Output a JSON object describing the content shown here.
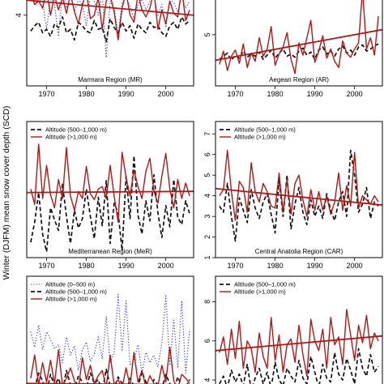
{
  "figure": {
    "ylabel": "Winter (DJFM) mean snow cover depth (SCD)"
  },
  "colors": {
    "low": "#2233cc",
    "mid": "#111111",
    "high": "#b01818"
  },
  "chart_data": [
    {
      "type": "line",
      "region": "Marmara Region (MR)",
      "xticks": [
        1970,
        1980,
        1990,
        2000
      ],
      "yticks": [
        4
      ],
      "xlim": [
        1965,
        2007
      ],
      "ylim": [
        0,
        5.5
      ],
      "legend": [],
      "years": [
        1966,
        1967,
        1968,
        1969,
        1970,
        1971,
        1972,
        1973,
        1974,
        1975,
        1976,
        1977,
        1978,
        1979,
        1980,
        1981,
        1982,
        1983,
        1984,
        1985,
        1986,
        1987,
        1988,
        1989,
        1990,
        1991,
        1992,
        1993,
        1994,
        1995,
        1996,
        1997,
        1998,
        1999,
        2000,
        2001,
        2002,
        2003,
        2004,
        2005,
        2006
      ],
      "series": [
        {
          "class": "low",
          "style": "dotted",
          "values": [
            5.2,
            4.6,
            4.9,
            4.8,
            3.2,
            5.0,
            4.6,
            2.8,
            5.3,
            4.4,
            5.1,
            4.2,
            4.9,
            4.6,
            3.4,
            5.2,
            4.8,
            4.0,
            5.3,
            1.6,
            4.8,
            4.4,
            2.9,
            4.7,
            5.0,
            4.5,
            3.8,
            4.6,
            4.9,
            4.3,
            4.8,
            5.1,
            4.0,
            4.6,
            3.3,
            4.9,
            4.7,
            4.2,
            5.0,
            4.4,
            4.8
          ]
        },
        {
          "class": "mid",
          "style": "dashed",
          "values": [
            3.1,
            3.4,
            3.6,
            3.0,
            3.2,
            2.8,
            3.5,
            3.3,
            3.9,
            3.0,
            3.2,
            2.6,
            3.6,
            3.4,
            3.1,
            3.0,
            3.7,
            3.2,
            3.3,
            2.5,
            3.8,
            3.3,
            3.0,
            3.6,
            3.1,
            3.4,
            2.7,
            3.5,
            3.2,
            3.0,
            3.6,
            3.3,
            3.4,
            3.0,
            2.8,
            3.4,
            3.6,
            3.2,
            3.9,
            3.5,
            3.7
          ]
        },
        {
          "class": "high",
          "style": "solid",
          "values": [
            5.3,
            4.6,
            4.8,
            4.4,
            5.4,
            4.0,
            5.1,
            4.3,
            5.0,
            4.1,
            5.2,
            4.2,
            3.5,
            4.6,
            5.3,
            3.8,
            4.0,
            5.0,
            3.2,
            4.8,
            5.1,
            4.2,
            2.6,
            4.4,
            5.3,
            4.0,
            3.6,
            5.2,
            4.3,
            3.9,
            4.4,
            5.4,
            3.2,
            4.3,
            3.5,
            4.8,
            4.1,
            3.9,
            5.5,
            3.7,
            4.3
          ]
        }
      ],
      "trend": {
        "class": "high",
        "y0": 4.85,
        "y1": 4.0
      }
    },
    {
      "type": "line",
      "region": "Aegean Region (AR)",
      "xticks": [
        1970,
        1980,
        1990,
        2000
      ],
      "yticks": [
        5
      ],
      "xlim": [
        1965,
        2007
      ],
      "ylim": [
        0,
        9.5
      ],
      "legend": [],
      "years": [
        1966,
        1967,
        1968,
        1969,
        1970,
        1971,
        1972,
        1973,
        1974,
        1975,
        1976,
        1977,
        1978,
        1979,
        1980,
        1981,
        1982,
        1983,
        1984,
        1985,
        1986,
        1987,
        1988,
        1989,
        1990,
        1991,
        1992,
        1993,
        1994,
        1995,
        1996,
        1997,
        1998,
        1999,
        2000,
        2001,
        2002,
        2003,
        2004,
        2005,
        2006
      ],
      "series": [
        {
          "class": "mid",
          "style": "dashed",
          "values": [
            2.6,
            2.9,
            3.2,
            2.5,
            3.0,
            2.7,
            3.4,
            2.8,
            3.1,
            2.9,
            3.3,
            2.6,
            3.0,
            3.5,
            2.7,
            3.2,
            3.6,
            2.9,
            3.1,
            2.8,
            3.4,
            3.7,
            3.0,
            3.3,
            2.6,
            3.5,
            3.8,
            3.1,
            3.4,
            2.9,
            3.6,
            3.9,
            3.2,
            3.5,
            3.0,
            3.8,
            4.0,
            3.4,
            3.6,
            3.9,
            4.1
          ]
        },
        {
          "class": "high",
          "style": "solid",
          "values": [
            2.1,
            3.4,
            1.5,
            2.9,
            3.5,
            2.2,
            4.1,
            1.8,
            3.2,
            2.4,
            4.7,
            2.9,
            3.6,
            5.8,
            2.0,
            3.1,
            3.8,
            5.2,
            2.6,
            1.2,
            4.2,
            3.0,
            4.7,
            6.4,
            2.3,
            3.4,
            4.9,
            2.7,
            3.6,
            2.4,
            1.8,
            4.4,
            3.2,
            2.8,
            3.6,
            4.2,
            9.4,
            3.6,
            4.7,
            3.0,
            6.8
          ]
        }
      ],
      "trend": {
        "class": "high",
        "y0": 2.5,
        "y1": 5.5
      }
    },
    {
      "type": "line",
      "region": "Mediterranean Region (MeR)",
      "xticks": [
        1970,
        1980,
        1990,
        2000
      ],
      "yticks": [],
      "xlim": [
        1965,
        2007
      ],
      "ylim": [
        0,
        11.5
      ],
      "legend": [
        "Altitude (500–1,000 m)",
        "Altitude (>1,000 m)"
      ],
      "years": [
        1966,
        1967,
        1968,
        1969,
        1970,
        1971,
        1972,
        1973,
        1974,
        1975,
        1976,
        1977,
        1978,
        1979,
        1980,
        1981,
        1982,
        1983,
        1984,
        1985,
        1986,
        1987,
        1988,
        1989,
        1990,
        1991,
        1992,
        1993,
        1994,
        1995,
        1996,
        1997,
        1998,
        1999,
        2000,
        2001,
        2002,
        2003,
        2004,
        2005,
        2006
      ],
      "series": [
        {
          "class": "mid",
          "style": "dashed",
          "values": [
            1.3,
            3.0,
            5.5,
            2.0,
            0.5,
            4.2,
            3.2,
            2.3,
            6.2,
            3.5,
            1.2,
            4.0,
            2.5,
            3.3,
            5.8,
            3.5,
            1.6,
            5.1,
            2.7,
            6.5,
            1.2,
            4.6,
            3.8,
            0.6,
            6.9,
            3.3,
            8.6,
            3.6,
            2.0,
            4.8,
            3.1,
            7.0,
            3.8,
            1.7,
            4.4,
            2.6,
            6.6,
            3.4,
            2.8,
            4.8,
            3.7
          ]
        },
        {
          "class": "high",
          "style": "solid",
          "values": [
            5.8,
            4.5,
            9.6,
            5.0,
            7.8,
            5.3,
            4.2,
            6.6,
            5.0,
            9.3,
            5.2,
            4.0,
            5.6,
            5.0,
            7.7,
            5.4,
            4.9,
            5.8,
            6.0,
            5.0,
            7.8,
            5.2,
            3.0,
            8.9,
            6.8,
            5.2,
            7.4,
            6.0,
            5.0,
            7.3,
            8.4,
            5.6,
            4.6,
            6.9,
            8.8,
            5.8,
            4.2,
            6.6,
            5.0,
            6.3,
            5.2
          ]
        }
      ],
      "trend": {
        "class": "high",
        "y0": 5.5,
        "y1": 5.6
      }
    },
    {
      "type": "line",
      "region": "Central Anatolia Region (CAR)",
      "xticks": [
        1970,
        1980,
        1990,
        2000
      ],
      "yticks": [
        1,
        2,
        3,
        4,
        5,
        6,
        7
      ],
      "xlim": [
        1965,
        2007
      ],
      "ylim": [
        1,
        7.6
      ],
      "legend": [
        "Altitude (500–1,000 m)",
        "Altitude (>1,000 m)"
      ],
      "years": [
        1966,
        1967,
        1968,
        1969,
        1970,
        1971,
        1972,
        1973,
        1974,
        1975,
        1976,
        1977,
        1978,
        1979,
        1980,
        1981,
        1982,
        1983,
        1984,
        1985,
        1986,
        1987,
        1988,
        1989,
        1990,
        1991,
        1992,
        1993,
        1994,
        1995,
        1996,
        1997,
        1998,
        1999,
        2000,
        2001,
        2002,
        2003,
        2004,
        2005,
        2006
      ],
      "series": [
        {
          "class": "mid",
          "style": "dashed",
          "values": [
            3.5,
            3.2,
            4.6,
            3.0,
            1.8,
            3.9,
            3.3,
            2.7,
            4.3,
            3.4,
            2.9,
            3.7,
            4.1,
            3.1,
            2.2,
            4.8,
            3.0,
            5.0,
            2.4,
            3.6,
            4.4,
            3.2,
            2.6,
            3.8,
            3.0,
            3.5,
            2.9,
            4.1,
            3.3,
            2.8,
            3.7,
            4.2,
            3.0,
            6.2,
            5.0,
            3.2,
            3.6,
            4.4,
            2.9,
            3.7,
            3.5
          ]
        },
        {
          "class": "high",
          "style": "solid",
          "values": [
            4.0,
            4.3,
            6.2,
            4.2,
            2.8,
            4.7,
            4.4,
            3.2,
            5.6,
            4.2,
            3.7,
            4.6,
            4.2,
            3.5,
            3.4,
            5.1,
            3.2,
            4.8,
            3.1,
            4.6,
            5.0,
            3.8,
            3.0,
            4.3,
            3.3,
            4.2,
            3.3,
            4.0,
            3.1,
            3.7,
            5.1,
            3.3,
            4.5,
            3.5,
            6.1,
            3.4,
            4.0,
            3.8,
            3.6,
            4.0,
            3.7
          ]
        }
      ],
      "trend": {
        "class": "high",
        "y0": 4.35,
        "y1": 3.55
      }
    },
    {
      "type": "line",
      "region": "",
      "xticks": [],
      "yticks": [],
      "xlim": [
        1965,
        2007
      ],
      "ylim": [
        3.4,
        12.5
      ],
      "legend": [
        "Altitude (0–500 m)",
        "Altitude (500–1,000 m)",
        "Altitude (>1,000 m)"
      ],
      "years": [
        1966,
        1967,
        1968,
        1969,
        1970,
        1971,
        1972,
        1973,
        1974,
        1975,
        1976,
        1977,
        1978,
        1979,
        1980,
        1981,
        1982,
        1983,
        1984,
        1985,
        1986,
        1987,
        1988,
        1989,
        1990,
        1991,
        1992,
        1993,
        1994,
        1995,
        1996,
        1997,
        1998,
        1999,
        2000,
        2001,
        2002,
        2003,
        2004,
        2005,
        2006
      ],
      "series": [
        {
          "class": "low",
          "style": "dotted",
          "values": [
            8.2,
            7.0,
            8.7,
            6.8,
            8.2,
            7.6,
            6.9,
            7.2,
            5.8,
            7.8,
            6.4,
            7.1,
            5.2,
            6.8,
            7.4,
            5.9,
            6.5,
            7.8,
            6.1,
            9.4,
            5.8,
            6.6,
            11.1,
            6.7,
            10.6,
            5.6,
            6.0,
            7.2,
            5.0,
            6.6,
            5.8,
            6.4,
            5.5,
            7.3,
            11.0,
            5.6,
            9.1,
            5.4,
            10.6,
            5.0,
            8.4
          ]
        },
        {
          "class": "mid",
          "style": "dashed",
          "values": [
            4.2,
            3.8,
            5.0,
            4.4,
            3.5,
            4.9,
            4.0,
            4.6,
            3.6,
            5.2,
            4.1,
            3.7,
            4.8,
            4.3,
            3.9,
            5.0,
            4.2,
            4.5,
            3.6,
            5.3,
            4.0,
            3.8,
            4.7,
            4.2,
            3.5,
            4.6,
            4.0,
            3.9,
            5.1,
            4.3,
            3.7,
            4.5,
            4.1,
            3.8,
            4.9,
            4.2,
            3.6,
            4.7,
            4.0,
            3.9,
            4.5
          ]
        },
        {
          "class": "high",
          "style": "solid",
          "values": [
            4.6,
            6.4,
            4.1,
            5.8,
            4.3,
            6.0,
            4.2,
            6.8,
            4.0,
            4.6,
            5.4,
            4.4,
            3.8,
            6.2,
            4.5,
            5.6,
            4.2,
            4.8,
            5.2,
            3.9,
            6.4,
            4.1,
            4.5,
            3.8,
            5.4,
            4.0,
            6.6,
            4.3,
            5.2,
            3.9,
            4.8,
            4.2,
            4.0,
            5.6,
            4.3,
            7.0,
            4.4,
            3.8,
            4.9,
            4.6,
            4.2
          ]
        }
      ],
      "trend": {
        "class": "high",
        "y0": 4.2,
        "y1": 4.1
      }
    },
    {
      "type": "line",
      "region": "",
      "xticks": [],
      "yticks": [
        4,
        6,
        8
      ],
      "xlim": [
        1965,
        2007
      ],
      "ylim": [
        3.3,
        9.3
      ],
      "legend": [
        "Altitude (500–1,000 m)",
        "Altitude (>1,000 m)"
      ],
      "years": [
        1966,
        1967,
        1968,
        1969,
        1970,
        1971,
        1972,
        1973,
        1974,
        1975,
        1976,
        1977,
        1978,
        1979,
        1980,
        1981,
        1982,
        1983,
        1984,
        1985,
        1986,
        1987,
        1988,
        1989,
        1990,
        1991,
        1992,
        1993,
        1994,
        1995,
        1996,
        1997,
        1998,
        1999,
        2000,
        2001,
        2002,
        2003,
        2004,
        2005,
        2006
      ],
      "series": [
        {
          "class": "mid",
          "style": "dashed",
          "values": [
            3.8,
            4.2,
            3.6,
            4.5,
            3.9,
            4.3,
            3.7,
            4.8,
            3.5,
            4.1,
            4.6,
            3.8,
            4.4,
            3.6,
            4.9,
            4.0,
            3.7,
            4.6,
            4.2,
            3.9,
            5.0,
            4.1,
            3.8,
            5.2,
            4.4,
            3.6,
            4.8,
            4.1,
            3.9,
            5.4,
            4.3,
            4.0,
            5.1,
            4.5,
            3.8,
            5.6,
            4.6,
            4.2,
            5.3,
            4.4,
            4.7
          ]
        },
        {
          "class": "high",
          "style": "solid",
          "values": [
            5.4,
            6.2,
            4.8,
            6.6,
            5.1,
            7.0,
            4.6,
            6.0,
            5.6,
            4.4,
            6.4,
            5.2,
            4.6,
            7.2,
            5.0,
            6.3,
            4.4,
            5.8,
            6.1,
            4.9,
            6.8,
            5.3,
            4.2,
            7.1,
            6.0,
            5.5,
            6.6,
            4.6,
            7.2,
            5.8,
            6.2,
            4.8,
            7.6,
            6.3,
            5.0,
            6.8,
            5.9,
            7.3,
            5.6,
            6.4,
            6.0
          ]
        }
      ],
      "trend": {
        "class": "high",
        "y0": 5.5,
        "y1": 6.25
      }
    }
  ]
}
